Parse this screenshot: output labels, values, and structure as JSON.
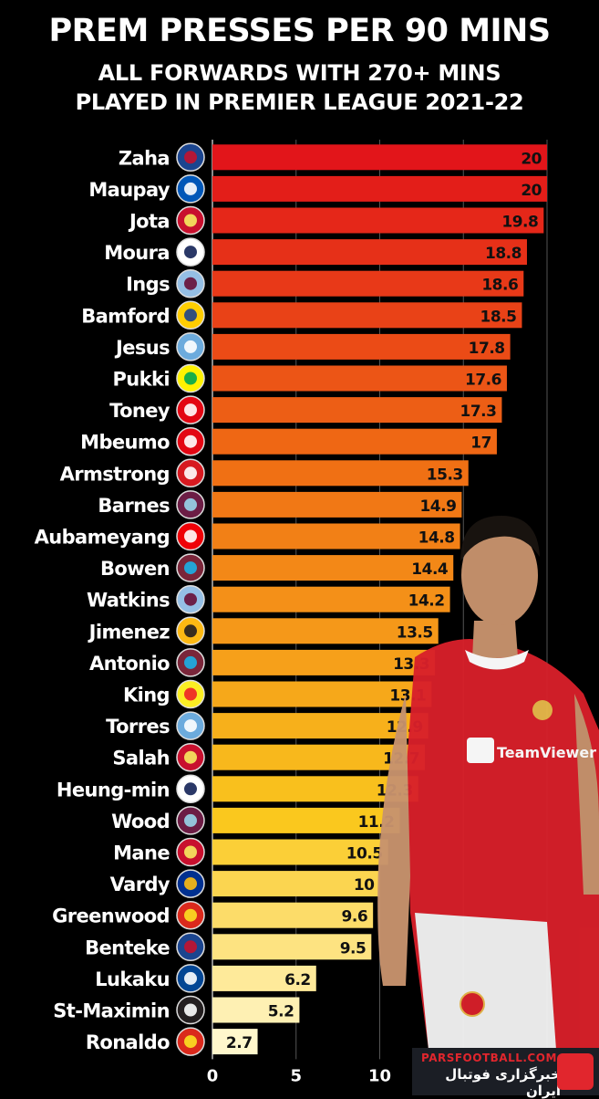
{
  "header": {
    "title": "PREM PRESSES PER 90 MINS",
    "subtitle_line1": "ALL FORWARDS WITH 270+ MINS",
    "subtitle_line2": "PLAYED IN PREMIER LEAGUE 2021-22"
  },
  "watermark": {
    "site": "PARSFOOTBALL.COM",
    "tagline": "خبرگزاری فوتبال ایران"
  },
  "chart_data": {
    "type": "bar",
    "orientation": "horizontal",
    "title": "PREM PRESSES PER 90 MINS",
    "subtitle": "ALL FORWARDS WITH 270+ MINS PLAYED IN PREMIER LEAGUE 2021-22",
    "xlabel": "",
    "ylabel": "",
    "xlim": [
      0,
      20
    ],
    "xticks": [
      0,
      5,
      10
    ],
    "grid": true,
    "categories": [
      "Zaha",
      "Maupay",
      "Jota",
      "Moura",
      "Ings",
      "Bamford",
      "Jesus",
      "Pukki",
      "Toney",
      "Mbeumo",
      "Armstrong",
      "Barnes",
      "Aubameyang",
      "Bowen",
      "Watkins",
      "Jimenez",
      "Antonio",
      "King",
      "Torres",
      "Salah",
      "Heung-min",
      "Wood",
      "Mane",
      "Vardy",
      "Greenwood",
      "Benteke",
      "Lukaku",
      "St-Maximin",
      "Ronaldo"
    ],
    "values": [
      20,
      20,
      19.8,
      18.8,
      18.6,
      18.5,
      17.8,
      17.6,
      17.3,
      17,
      15.3,
      14.9,
      14.8,
      14.4,
      14.2,
      13.5,
      13.3,
      13.1,
      12.9,
      12.7,
      12.3,
      11.2,
      10.5,
      10,
      9.6,
      9.5,
      6.2,
      5.2,
      2.7
    ],
    "value_labels": [
      "20",
      "20",
      "19.8",
      "18.8",
      "18.6",
      "18.5",
      "17.8",
      "17.6",
      "17.3",
      "17",
      "15.3",
      "14.9",
      "14.8",
      "14.4",
      "14.2",
      "13.5",
      "13.3",
      "13.1",
      "12.9",
      "12.7",
      "12.3",
      "11.2",
      "10.5",
      "10",
      "9.6",
      "9.5",
      "6.2",
      "5.2",
      "2.7"
    ],
    "clubs": [
      "crystal-palace",
      "brighton",
      "liverpool",
      "tottenham",
      "aston-villa",
      "leeds",
      "man-city",
      "norwich",
      "brentford",
      "brentford",
      "southampton",
      "burnley",
      "arsenal",
      "west-ham",
      "aston-villa",
      "wolves",
      "west-ham",
      "watford",
      "man-city",
      "liverpool",
      "tottenham",
      "burnley",
      "liverpool",
      "leicester",
      "man-united",
      "crystal-palace",
      "chelsea",
      "newcastle",
      "man-united"
    ],
    "colors": {
      "top": "#e2151a",
      "bottom": "#fff7cc",
      "background": "#000000"
    }
  }
}
